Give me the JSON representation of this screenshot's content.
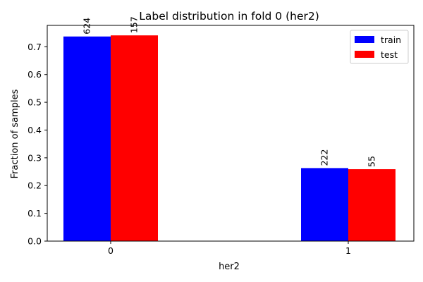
{
  "chart_data": {
    "type": "bar",
    "title": "Label distribution in fold 0 (her2)",
    "xlabel": "her2",
    "ylabel": "Fraction of samples",
    "categories": [
      "0",
      "1"
    ],
    "series": [
      {
        "name": "train",
        "color": "#0000ff",
        "values": [
          0.737,
          0.263
        ],
        "labels": [
          "624",
          "222"
        ]
      },
      {
        "name": "test",
        "color": "#ff0000",
        "values": [
          0.741,
          0.259
        ],
        "labels": [
          "157",
          "55"
        ]
      }
    ],
    "ylim": [
      0,
      0.777
    ],
    "yticks": [
      "0.0",
      "0.1",
      "0.2",
      "0.3",
      "0.4",
      "0.5",
      "0.6",
      "0.7"
    ],
    "grid": false,
    "legend": "top-right"
  }
}
